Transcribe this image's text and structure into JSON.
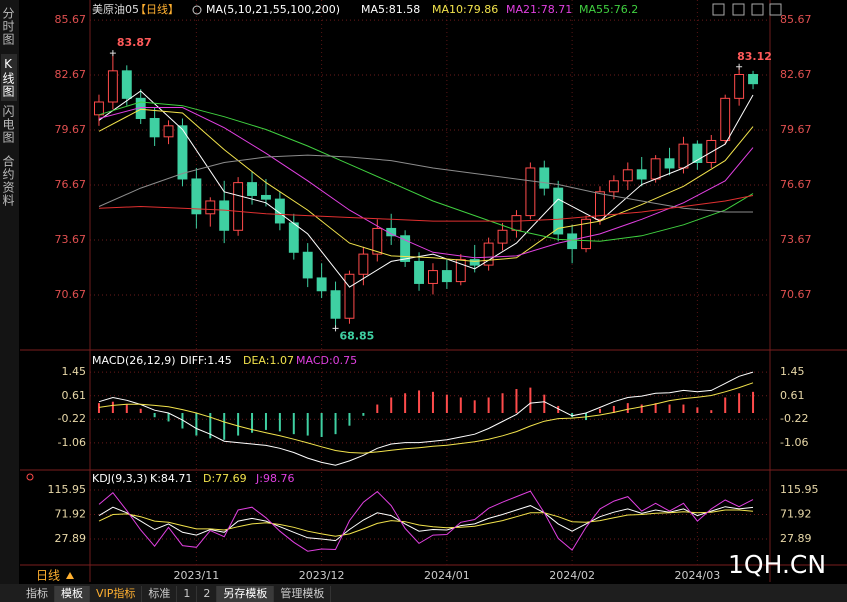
{
  "ui": {
    "sidebar": [
      "分时图",
      "K线图",
      "闪电图",
      "合约资料"
    ],
    "period_button": "日线",
    "toolbar": [
      "指标",
      "模板",
      "VIP指标",
      "标准",
      "1",
      "2",
      "另存模板",
      "管理模板"
    ],
    "watermark": "1QH.CN"
  },
  "chart_data": [
    {
      "type": "candlestick",
      "title": "美原油05",
      "subtitle": "【日线】",
      "indicator": "MA(5,10,21,55,100,200)",
      "categories": [
        null,
        null,
        null,
        null,
        null,
        null,
        null,
        "2023/11",
        null,
        null,
        null,
        null,
        null,
        null,
        null,
        null,
        "2023/12",
        null,
        null,
        null,
        null,
        null,
        null,
        null,
        null,
        "2024/01",
        null,
        null,
        null,
        null,
        null,
        null,
        null,
        null,
        "2024/02",
        null,
        null,
        null,
        null,
        null,
        null,
        null,
        null,
        "2024/03",
        null,
        null,
        null,
        null
      ],
      "candles": [
        [
          80.5,
          81.6,
          79.9,
          81.2
        ],
        [
          81.2,
          83.87,
          80.8,
          82.9
        ],
        [
          82.9,
          83.2,
          81.0,
          81.4
        ],
        [
          81.4,
          81.9,
          80.0,
          80.3
        ],
        [
          80.3,
          80.9,
          78.8,
          79.3
        ],
        [
          79.3,
          80.2,
          78.9,
          79.9
        ],
        [
          79.9,
          80.3,
          76.6,
          77.0
        ],
        [
          77.0,
          77.6,
          74.3,
          75.1
        ],
        [
          75.1,
          76.0,
          74.4,
          75.8
        ],
        [
          75.8,
          76.9,
          73.5,
          74.2
        ],
        [
          74.2,
          77.1,
          73.9,
          76.8
        ],
        [
          76.8,
          77.4,
          75.6,
          76.1
        ],
        [
          76.1,
          77.0,
          75.5,
          75.9
        ],
        [
          75.9,
          76.3,
          74.2,
          74.6
        ],
        [
          74.6,
          75.1,
          72.6,
          73.0
        ],
        [
          73.0,
          73.5,
          71.1,
          71.6
        ],
        [
          71.6,
          72.4,
          70.5,
          70.9
        ],
        [
          70.9,
          71.4,
          68.85,
          69.4
        ],
        [
          69.4,
          72.0,
          69.1,
          71.8
        ],
        [
          71.8,
          73.3,
          71.2,
          72.9
        ],
        [
          72.9,
          74.8,
          72.5,
          74.3
        ],
        [
          74.3,
          75.1,
          73.4,
          73.9
        ],
        [
          73.9,
          74.2,
          72.2,
          72.5
        ],
        [
          72.5,
          73.0,
          70.9,
          71.3
        ],
        [
          71.3,
          72.4,
          70.7,
          72.0
        ],
        [
          72.0,
          72.6,
          71.0,
          71.4
        ],
        [
          71.4,
          72.9,
          71.2,
          72.6
        ],
        [
          72.6,
          73.4,
          71.9,
          72.3
        ],
        [
          72.3,
          73.8,
          72.0,
          73.5
        ],
        [
          73.5,
          74.6,
          73.1,
          74.2
        ],
        [
          74.2,
          75.3,
          73.8,
          75.0
        ],
        [
          75.0,
          77.9,
          74.8,
          77.6
        ],
        [
          77.6,
          78.0,
          76.1,
          76.5
        ],
        [
          76.5,
          76.9,
          73.6,
          74.0
        ],
        [
          74.0,
          74.5,
          72.4,
          73.2
        ],
        [
          73.2,
          75.0,
          73.0,
          74.8
        ],
        [
          74.8,
          76.6,
          74.5,
          76.3
        ],
        [
          76.3,
          77.2,
          75.9,
          76.9
        ],
        [
          76.9,
          77.9,
          76.4,
          77.5
        ],
        [
          77.5,
          78.2,
          76.6,
          77.0
        ],
        [
          77.0,
          78.3,
          76.8,
          78.1
        ],
        [
          78.1,
          78.7,
          77.2,
          77.6
        ],
        [
          77.6,
          79.3,
          77.3,
          78.9
        ],
        [
          78.9,
          79.1,
          77.5,
          77.9
        ],
        [
          77.9,
          79.4,
          77.6,
          79.1
        ],
        [
          79.1,
          81.6,
          78.9,
          81.4
        ],
        [
          81.4,
          83.12,
          81.0,
          82.7
        ],
        [
          82.7,
          82.9,
          81.9,
          82.2
        ]
      ],
      "up_color": "#ff4b4b",
      "down_color": "#3fd0a2",
      "series": [
        {
          "name": "MA5:81.58",
          "color": "#ffffff",
          "x": [
            0,
            3,
            6,
            9,
            12,
            15,
            18,
            21,
            24,
            27,
            30,
            33,
            36,
            39,
            42,
            45,
            47
          ],
          "values": [
            80.2,
            81.8,
            79.7,
            76.3,
            75.7,
            74.0,
            71.1,
            72.5,
            72.9,
            72.1,
            73.5,
            75.9,
            74.7,
            76.7,
            77.6,
            78.9,
            81.58
          ]
        },
        {
          "name": "MA10:79.86",
          "color": "#f2e34c",
          "x": [
            0,
            3,
            6,
            9,
            12,
            15,
            18,
            21,
            24,
            27,
            30,
            33,
            36,
            39,
            42,
            45,
            47
          ],
          "values": [
            79.6,
            80.8,
            80.6,
            78.6,
            76.8,
            75.3,
            73.5,
            72.8,
            72.7,
            72.5,
            72.7,
            74.3,
            74.7,
            75.6,
            76.6,
            78.0,
            79.86
          ]
        },
        {
          "name": "MA21:78.71",
          "color": "#e040e0",
          "x": [
            0,
            3,
            6,
            9,
            12,
            15,
            18,
            21,
            24,
            27,
            30,
            33,
            36,
            39,
            42,
            45,
            47
          ],
          "values": [
            80.3,
            80.9,
            80.9,
            79.8,
            78.4,
            76.9,
            75.3,
            74.0,
            73.0,
            72.7,
            72.8,
            73.5,
            74.0,
            74.8,
            75.7,
            76.9,
            78.71
          ]
        },
        {
          "name": "MA55:76.2",
          "color": "#40d040",
          "x": [
            0,
            3,
            6,
            9,
            12,
            15,
            18,
            21,
            24,
            27,
            30,
            33,
            36,
            39,
            42,
            45,
            47
          ],
          "values": [
            80.5,
            81.2,
            81.0,
            80.4,
            79.7,
            78.8,
            77.8,
            76.8,
            75.8,
            75.0,
            74.2,
            73.7,
            73.6,
            73.9,
            74.5,
            75.3,
            76.2
          ]
        },
        {
          "color": "#8c8c8c",
          "x": [
            0,
            3,
            6,
            9,
            12,
            15,
            18,
            21,
            24,
            27,
            30,
            33,
            36,
            39,
            42,
            45,
            47
          ],
          "values": [
            75.5,
            76.5,
            77.3,
            77.9,
            78.2,
            78.3,
            78.2,
            78.0,
            77.6,
            77.3,
            77.0,
            76.7,
            76.2,
            75.8,
            75.4,
            75.2,
            75.2
          ]
        },
        {
          "color": "#e03030",
          "x": [
            0,
            3,
            6,
            9,
            12,
            15,
            18,
            21,
            24,
            27,
            30,
            33,
            36,
            39,
            42,
            45,
            47
          ],
          "values": [
            75.4,
            75.5,
            75.4,
            75.3,
            75.1,
            75.0,
            74.9,
            74.8,
            74.7,
            74.7,
            74.7,
            74.8,
            75.0,
            75.2,
            75.5,
            75.8,
            76.1
          ]
        }
      ],
      "annotations": [
        {
          "x": 1,
          "value": 83.87,
          "color": "#ff5a5a"
        },
        {
          "x": 17,
          "value": 68.85,
          "color": "#3fd0a2"
        },
        {
          "x": 46,
          "value": 83.12,
          "color": "#ff5a5a"
        }
      ],
      "ylim": [
        67.94,
        86.22
      ],
      "yticks": [
        70.67,
        73.67,
        76.67,
        79.67,
        82.67,
        85.67
      ],
      "grid": true
    },
    {
      "type": "macd",
      "title": "MACD(26,12,9)",
      "series": [
        {
          "name": "DIFF:1.45",
          "color": "#ffffff",
          "values": [
            0.4,
            0.55,
            0.45,
            0.3,
            0.1,
            0.0,
            -0.25,
            -0.55,
            -0.75,
            -1.0,
            -1.05,
            -1.1,
            -1.15,
            -1.25,
            -1.4,
            -1.6,
            -1.75,
            -1.85,
            -1.7,
            -1.5,
            -1.25,
            -1.1,
            -1.05,
            -1.05,
            -1.0,
            -0.95,
            -0.85,
            -0.75,
            -0.55,
            -0.3,
            -0.05,
            0.35,
            0.4,
            0.15,
            -0.1,
            0.0,
            0.2,
            0.4,
            0.55,
            0.6,
            0.7,
            0.72,
            0.8,
            0.75,
            0.8,
            1.05,
            1.3,
            1.45
          ]
        },
        {
          "name": "DEA:1.07",
          "color": "#f2e34c",
          "values": [
            0.2,
            0.27,
            0.31,
            0.31,
            0.27,
            0.22,
            0.12,
            0.0,
            -0.15,
            -0.32,
            -0.46,
            -0.59,
            -0.7,
            -0.81,
            -0.93,
            -1.06,
            -1.2,
            -1.33,
            -1.4,
            -1.42,
            -1.38,
            -1.32,
            -1.27,
            -1.23,
            -1.18,
            -1.14,
            -1.08,
            -1.02,
            -0.93,
            -0.81,
            -0.66,
            -0.46,
            -0.29,
            -0.2,
            -0.18,
            -0.14,
            -0.07,
            0.02,
            0.13,
            0.22,
            0.32,
            0.44,
            0.51,
            0.56,
            0.62,
            0.75,
            0.9,
            1.07
          ]
        }
      ],
      "bars": {
        "name": "MACD:0.75",
        "color": "#e040e0",
        "up_color": "#ff4b4b",
        "down_color": "#3fd0a2",
        "values": [
          0.35,
          0.4,
          0.3,
          0.15,
          -0.15,
          -0.3,
          -0.55,
          -0.8,
          -0.9,
          -0.95,
          -0.8,
          -0.7,
          -0.6,
          -0.65,
          -0.75,
          -0.8,
          -0.85,
          -0.75,
          -0.45,
          -0.1,
          0.3,
          0.55,
          0.7,
          0.8,
          0.75,
          0.65,
          0.55,
          0.45,
          0.55,
          0.7,
          0.85,
          0.9,
          0.65,
          0.25,
          -0.15,
          -0.25,
          0.15,
          0.25,
          0.35,
          0.3,
          0.35,
          0.3,
          0.3,
          0.2,
          0.1,
          0.55,
          0.7,
          0.75
        ]
      },
      "ylim": [
        -1.95,
        1.95
      ],
      "yticks": [
        -1.06,
        -0.22,
        0.61,
        1.45
      ],
      "grid": true
    },
    {
      "type": "line",
      "title": "KDJ(9,3,3)",
      "series": [
        {
          "name": "K:84.71",
          "color": "#ffffff",
          "values": [
            70,
            85,
            75,
            60,
            45,
            55,
            40,
            35,
            45,
            40,
            60,
            65,
            60,
            50,
            40,
            30,
            28,
            25,
            45,
            62,
            75,
            70,
            55,
            42,
            45,
            44,
            52,
            55,
            65,
            72,
            80,
            88,
            75,
            55,
            42,
            55,
            68,
            76,
            82,
            74,
            80,
            76,
            82,
            70,
            78,
            86,
            82,
            84.71
          ]
        },
        {
          "name": "D:77.69",
          "color": "#f2e34c",
          "values": [
            60,
            72,
            73,
            68,
            60,
            58,
            52,
            46,
            46,
            44,
            50,
            55,
            57,
            54,
            49,
            42,
            37,
            33,
            37,
            46,
            56,
            61,
            59,
            53,
            50,
            48,
            49,
            51,
            56,
            61,
            68,
            75,
            75,
            68,
            59,
            58,
            61,
            66,
            71,
            72,
            74,
            75,
            77,
            75,
            76,
            80,
            80,
            77.69
          ]
        },
        {
          "name": "J:98.76",
          "color": "#e040e0",
          "values": [
            90,
            111,
            79,
            44,
            15,
            49,
            16,
            13,
            43,
            32,
            80,
            85,
            66,
            42,
            22,
            6,
            10,
            9,
            61,
            94,
            113,
            88,
            47,
            20,
            35,
            36,
            58,
            63,
            83,
            94,
            104,
            114,
            75,
            29,
            8,
            49,
            82,
            96,
            104,
            78,
            92,
            78,
            92,
            60,
            82,
            98,
            86,
            98.76
          ]
        }
      ],
      "ylim": [
        -9.8,
        133.9
      ],
      "yticks": [
        27.89,
        71.92,
        115.95
      ],
      "grid": true
    }
  ]
}
